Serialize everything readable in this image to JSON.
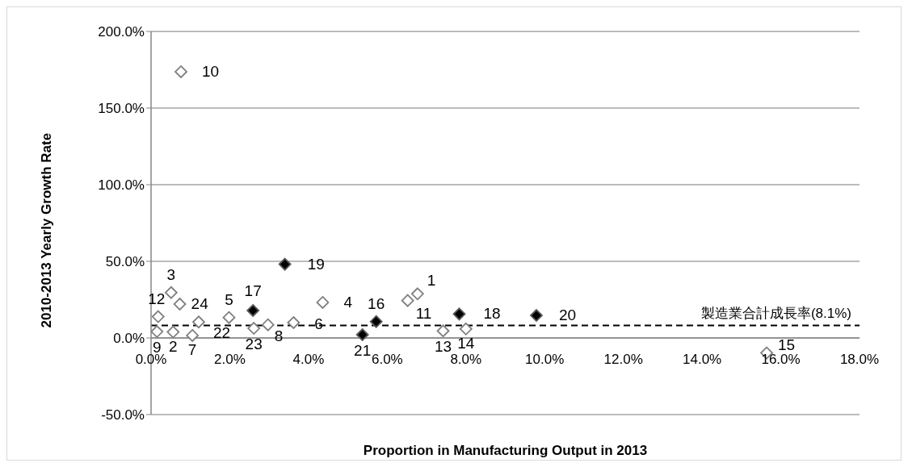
{
  "chart_data": {
    "type": "scatter",
    "xlabel": "Proportion in Manufacturing Output in 2013",
    "ylabel": "2010-2013 Yearly Growth Rate",
    "xlim": [
      0,
      18
    ],
    "xticks": [
      {
        "value": 0,
        "label": "0.0%"
      },
      {
        "value": 2,
        "label": "2.0%"
      },
      {
        "value": 4,
        "label": "4.0%"
      },
      {
        "value": 6,
        "label": "6.0%"
      },
      {
        "value": 8,
        "label": "8.0%"
      },
      {
        "value": 10,
        "label": "10.0%"
      },
      {
        "value": 12,
        "label": "12.0%"
      },
      {
        "value": 14,
        "label": "14.0%"
      },
      {
        "value": 16,
        "label": "16.0%"
      },
      {
        "value": 18,
        "label": "18.0%"
      }
    ],
    "ylim": [
      -50,
      200
    ],
    "yticks": [
      {
        "value": -50,
        "label": "-50.0%"
      },
      {
        "value": 0,
        "label": "0.0%"
      },
      {
        "value": 50,
        "label": "50.0%"
      },
      {
        "value": 100,
        "label": "100.0%"
      },
      {
        "value": 150,
        "label": "150.0%"
      },
      {
        "value": 200,
        "label": "200.0%"
      }
    ],
    "grid": "y",
    "legend": false,
    "marker": "diamond",
    "series": [
      {
        "color": "#7f7f7f",
        "x": [
          6.77,
          0.56,
          0.51,
          4.36,
          1.98,
          3.62,
          1.05,
          2.97,
          0.15,
          0.76,
          6.52,
          0.18,
          7.42,
          8.0,
          15.64,
          2.61,
          0.73,
          1.21
        ],
        "values": [
          28.8,
          3.9,
          29.6,
          23.2,
          13.3,
          10.0,
          1.6,
          8.6,
          4.2,
          173.7,
          24.4,
          13.9,
          4.6,
          5.9,
          -9.8,
          6.3,
          22.1,
          10.4
        ]
      },
      {
        "color": "#000000",
        "x": [
          5.72,
          2.59,
          7.83,
          3.4,
          9.79,
          5.37
        ],
        "values": [
          10.7,
          17.9,
          15.6,
          48.1,
          14.7,
          2.1
        ]
      }
    ],
    "ref_lines": [
      {
        "axis": "y",
        "value": 8.1,
        "label": "製造業合計成長率(8.1%)",
        "color": "#000000",
        "line_style": "dashed"
      }
    ],
    "annotations": [
      {
        "text": "1",
        "x": 6.77,
        "y": 28.8
      },
      {
        "text": "2",
        "x": 0.56,
        "y": 3.9
      },
      {
        "text": "3",
        "x": 0.51,
        "y": 29.6
      },
      {
        "text": "4",
        "x": 4.36,
        "y": 23.2
      },
      {
        "text": "5",
        "x": 1.98,
        "y": 13.3
      },
      {
        "text": "6",
        "x": 3.62,
        "y": 10.0
      },
      {
        "text": "7",
        "x": 1.05,
        "y": 1.6
      },
      {
        "text": "8",
        "x": 2.97,
        "y": 8.6
      },
      {
        "text": "9",
        "x": 0.15,
        "y": 4.2
      },
      {
        "text": "10",
        "x": 0.76,
        "y": 173.7
      },
      {
        "text": "11",
        "x": 6.52,
        "y": 24.4
      },
      {
        "text": "12",
        "x": 0.18,
        "y": 13.9
      },
      {
        "text": "13",
        "x": 7.42,
        "y": 4.6
      },
      {
        "text": "14",
        "x": 8.0,
        "y": 5.9
      },
      {
        "text": "15",
        "x": 15.64,
        "y": -9.8
      },
      {
        "text": "16",
        "x": 5.72,
        "y": 10.7
      },
      {
        "text": "17",
        "x": 2.59,
        "y": 17.9
      },
      {
        "text": "18",
        "x": 7.83,
        "y": 15.6
      },
      {
        "text": "19",
        "x": 3.4,
        "y": 48.1
      },
      {
        "text": "20",
        "x": 9.79,
        "y": 14.7
      },
      {
        "text": "21",
        "x": 5.37,
        "y": 2.1
      },
      {
        "text": "22",
        "x": 1.21,
        "y": 10.4
      },
      {
        "text": "23",
        "x": 2.61,
        "y": 6.3
      },
      {
        "text": "24",
        "x": 0.73,
        "y": 22.1
      }
    ]
  }
}
